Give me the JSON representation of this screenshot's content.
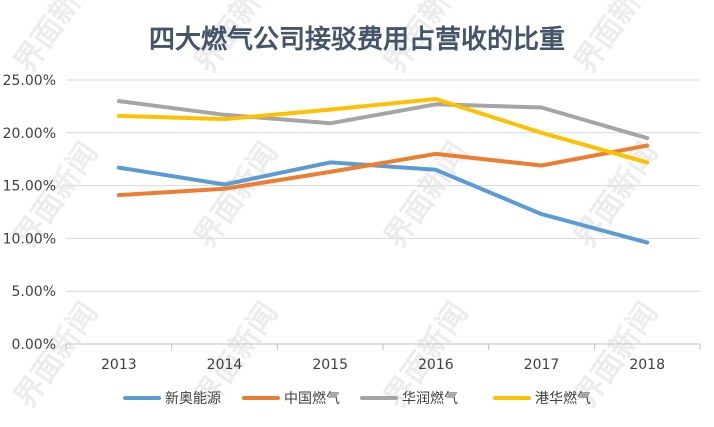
{
  "chart_data": {
    "type": "line",
    "title": "四大燃气公司接驳费用占营收的比重",
    "x": [
      "2013",
      "2014",
      "2015",
      "2016",
      "2017",
      "2018"
    ],
    "ylim": [
      0,
      25
    ],
    "yticks": [
      0,
      5,
      10,
      15,
      20,
      25
    ],
    "ytick_labels": [
      "0.00%",
      "5.00%",
      "10.00%",
      "15.00%",
      "20.00%",
      "25.00%"
    ],
    "xlabel": "",
    "ylabel": "",
    "grid": true,
    "legend_position": "bottom",
    "series": [
      {
        "name": "新奥能源",
        "color": "#5b9bd5",
        "values": [
          16.7,
          15.1,
          17.2,
          16.5,
          12.3,
          9.6
        ]
      },
      {
        "name": "中国燃气",
        "color": "#ed7d31",
        "values": [
          14.1,
          14.7,
          16.3,
          18.0,
          16.9,
          18.8
        ]
      },
      {
        "name": "华润燃气",
        "color": "#a5a5a5",
        "values": [
          23.0,
          21.7,
          20.9,
          22.7,
          22.4,
          19.5
        ]
      },
      {
        "name": "港华燃气",
        "color": "#ffc000",
        "values": [
          21.6,
          21.3,
          22.2,
          23.2,
          20.0,
          17.2
        ]
      }
    ]
  },
  "watermark": "界面新闻"
}
